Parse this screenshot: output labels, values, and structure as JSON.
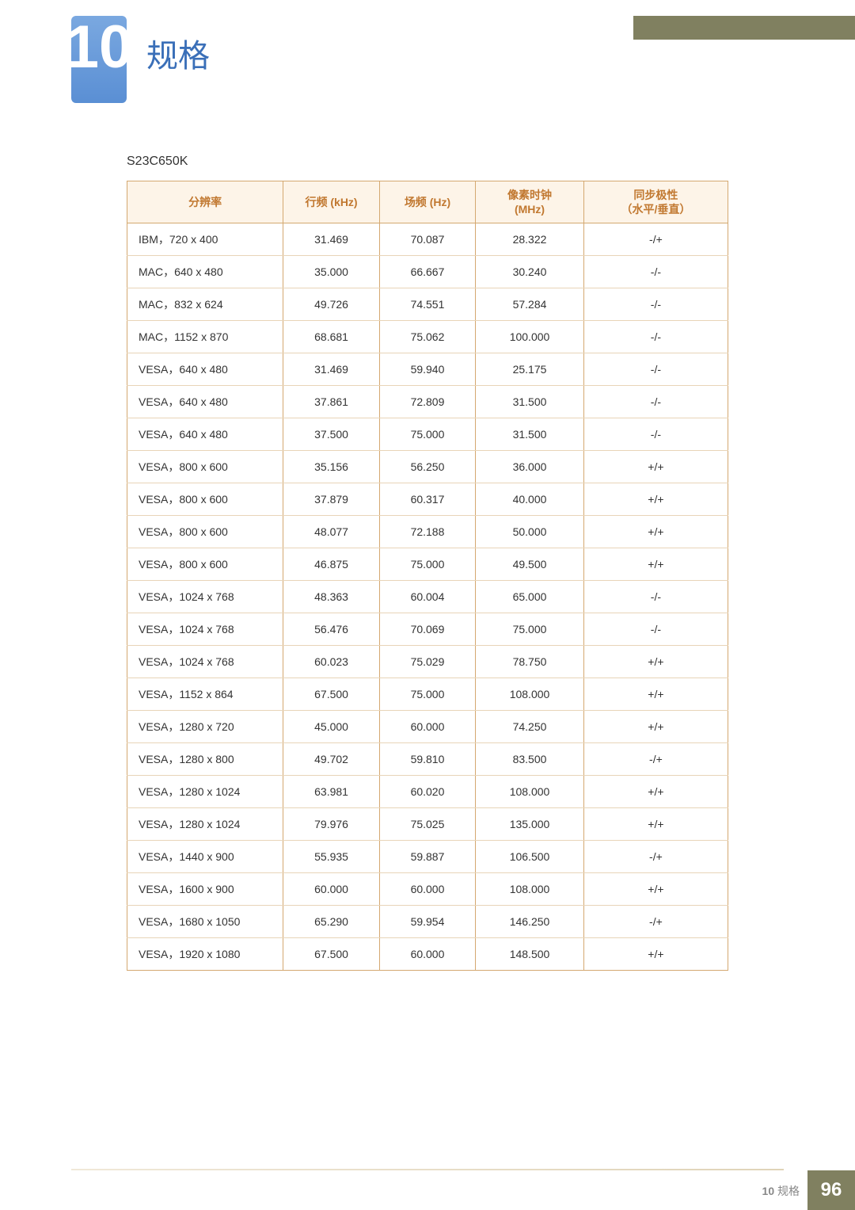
{
  "chapter": {
    "number": "10",
    "title": "规格"
  },
  "model": "S23C650K",
  "table": {
    "columns": [
      "分辨率",
      "行频 (kHz)",
      "场频 (Hz)",
      "像素时钟\n(MHz)",
      "同步极性\n（水平/垂直）"
    ],
    "rows": [
      [
        "IBM，720 x 400",
        "31.469",
        "70.087",
        "28.322",
        "-/+"
      ],
      [
        "MAC，640 x 480",
        "35.000",
        "66.667",
        "30.240",
        "-/-"
      ],
      [
        "MAC，832 x 624",
        "49.726",
        "74.551",
        "57.284",
        "-/-"
      ],
      [
        "MAC，1152 x 870",
        "68.681",
        "75.062",
        "100.000",
        "-/-"
      ],
      [
        "VESA，640 x 480",
        "31.469",
        "59.940",
        "25.175",
        "-/-"
      ],
      [
        "VESA，640 x 480",
        "37.861",
        "72.809",
        "31.500",
        "-/-"
      ],
      [
        "VESA，640 x 480",
        "37.500",
        "75.000",
        "31.500",
        "-/-"
      ],
      [
        "VESA，800 x 600",
        "35.156",
        "56.250",
        "36.000",
        "+/+"
      ],
      [
        "VESA，800 x 600",
        "37.879",
        "60.317",
        "40.000",
        "+/+"
      ],
      [
        "VESA，800 x 600",
        "48.077",
        "72.188",
        "50.000",
        "+/+"
      ],
      [
        "VESA，800 x 600",
        "46.875",
        "75.000",
        "49.500",
        "+/+"
      ],
      [
        "VESA，1024 x 768",
        "48.363",
        "60.004",
        "65.000",
        "-/-"
      ],
      [
        "VESA，1024 x 768",
        "56.476",
        "70.069",
        "75.000",
        "-/-"
      ],
      [
        "VESA，1024 x 768",
        "60.023",
        "75.029",
        "78.750",
        "+/+"
      ],
      [
        "VESA，1152 x 864",
        "67.500",
        "75.000",
        "108.000",
        "+/+"
      ],
      [
        "VESA，1280 x 720",
        "45.000",
        "60.000",
        "74.250",
        "+/+"
      ],
      [
        "VESA，1280 x 800",
        "49.702",
        "59.810",
        "83.500",
        "-/+"
      ],
      [
        "VESA，1280 x 1024",
        "63.981",
        "60.020",
        "108.000",
        "+/+"
      ],
      [
        "VESA，1280 x 1024",
        "79.976",
        "75.025",
        "135.000",
        "+/+"
      ],
      [
        "VESA，1440 x 900",
        "55.935",
        "59.887",
        "106.500",
        "-/+"
      ],
      [
        "VESA，1600 x 900",
        "60.000",
        "60.000",
        "108.000",
        "+/+"
      ],
      [
        "VESA，1680 x 1050",
        "65.290",
        "59.954",
        "146.250",
        "-/+"
      ],
      [
        "VESA，1920 x 1080",
        "67.500",
        "60.000",
        "148.500",
        "+/+"
      ]
    ],
    "col_widths": [
      "26%",
      "16%",
      "16%",
      "18%",
      "24%"
    ],
    "header_bg": "#fdf4e8",
    "header_color": "#c17830",
    "border_color": "#d4a870",
    "row_border_color": "#e8d4b8"
  },
  "footer": {
    "chapter_ref": "10",
    "chapter_label": "规格",
    "page_number": "96"
  },
  "colors": {
    "accent_olive": "#808060",
    "badge_gradient_top": "#7aa8e0",
    "badge_gradient_bottom": "#5a8fd4",
    "title_color": "#3a6fb8"
  }
}
